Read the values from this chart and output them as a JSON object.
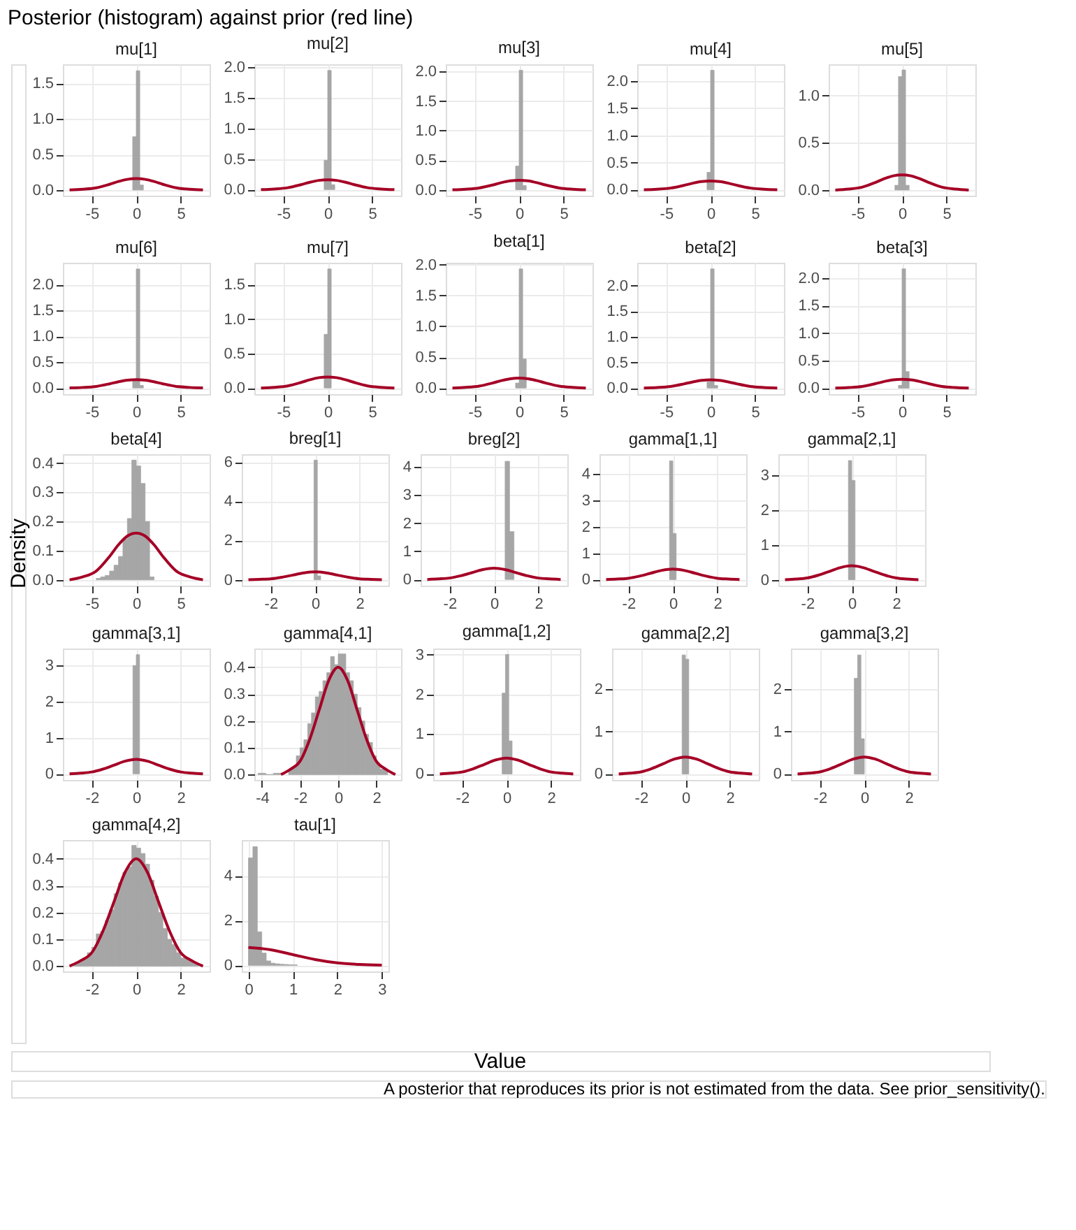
{
  "chart_data": [
    {
      "type": "histogram",
      "title": "mu[1]",
      "color": "#a6a6a6",
      "bins": [
        -0.4,
        0,
        0.4,
        0.8
      ],
      "values": [
        0.75,
        1.68,
        0.07
      ],
      "xlim": [
        -8.25,
        8.25
      ],
      "xticks": [
        -5,
        0,
        5
      ],
      "ylim": [
        -0.08,
        1.77
      ],
      "yticks": [
        {
          "value": 0,
          "label": "0.0"
        },
        {
          "value": 0.5,
          "label": "0.5"
        },
        {
          "value": 1,
          "label": "1.0"
        },
        {
          "value": 1.5,
          "label": "1.5"
        }
      ],
      "grid": true,
      "series": [
        {
          "type": "line",
          "color": "#a50026",
          "x": [
            -7.5,
            -6,
            -4.5,
            -3,
            -2,
            -1,
            0,
            1,
            2,
            3,
            4.5,
            6,
            7.5
          ],
          "values": [
            0.0,
            0.01,
            0.03,
            0.08,
            0.12,
            0.15,
            0.16,
            0.15,
            0.12,
            0.08,
            0.03,
            0.01,
            0.0
          ]
        }
      ]
    },
    {
      "type": "histogram",
      "title": "mu[2]",
      "color": "#a6a6a6",
      "bins": [
        -0.4,
        0,
        0.4,
        0.8
      ],
      "values": [
        0.48,
        1.95,
        0.08
      ],
      "xlim": [
        -8.25,
        8.25
      ],
      "xticks": [
        -5,
        0,
        5
      ],
      "ylim": [
        -0.1,
        2.05
      ],
      "yticks": [
        {
          "value": 0,
          "label": "0.0"
        },
        {
          "value": 0.5,
          "label": "0.5"
        },
        {
          "value": 1,
          "label": "1.0"
        },
        {
          "value": 1.5,
          "label": "1.5"
        },
        {
          "value": 2,
          "label": "2.0"
        }
      ],
      "grid": true,
      "series": [
        {
          "type": "line",
          "color": "#a50026",
          "x": [
            -7.5,
            -6,
            -4.5,
            -3,
            -2,
            -1,
            0,
            1,
            2,
            3,
            4.5,
            6,
            7.5
          ],
          "values": [
            0.0,
            0.01,
            0.03,
            0.08,
            0.12,
            0.15,
            0.16,
            0.15,
            0.12,
            0.08,
            0.03,
            0.01,
            0.0
          ]
        }
      ]
    },
    {
      "type": "histogram",
      "title": "mu[3]",
      "color": "#a6a6a6",
      "bins": [
        -0.4,
        0,
        0.4,
        0.8
      ],
      "values": [
        0.4,
        2.02,
        0.07
      ],
      "xlim": [
        -8.25,
        8.25
      ],
      "xticks": [
        -5,
        0,
        5
      ],
      "ylim": [
        -0.1,
        2.12
      ],
      "yticks": [
        {
          "value": 0,
          "label": "0.0"
        },
        {
          "value": 0.5,
          "label": "0.5"
        },
        {
          "value": 1,
          "label": "1.0"
        },
        {
          "value": 1.5,
          "label": "1.5"
        },
        {
          "value": 2,
          "label": "2.0"
        }
      ],
      "grid": true,
      "series": [
        {
          "type": "line",
          "color": "#a50026",
          "x": [
            -7.5,
            -6,
            -4.5,
            -3,
            -2,
            -1,
            0,
            1,
            2,
            3,
            4.5,
            6,
            7.5
          ],
          "values": [
            0.0,
            0.01,
            0.03,
            0.08,
            0.12,
            0.15,
            0.16,
            0.15,
            0.12,
            0.08,
            0.03,
            0.01,
            0.0
          ]
        }
      ]
    },
    {
      "type": "histogram",
      "title": "mu[4]",
      "color": "#a6a6a6",
      "bins": [
        -0.4,
        0,
        0.4
      ],
      "values": [
        0.32,
        2.2
      ],
      "xlim": [
        -8.25,
        8.25
      ],
      "xticks": [
        -5,
        0,
        5
      ],
      "ylim": [
        -0.11,
        2.31
      ],
      "yticks": [
        {
          "value": 0,
          "label": "0.0"
        },
        {
          "value": 0.5,
          "label": "0.5"
        },
        {
          "value": 1,
          "label": "1.0"
        },
        {
          "value": 1.5,
          "label": "1.5"
        },
        {
          "value": 2,
          "label": "2.0"
        }
      ],
      "grid": true,
      "series": [
        {
          "type": "line",
          "color": "#a50026",
          "x": [
            -7.5,
            -6,
            -4.5,
            -3,
            -2,
            -1,
            0,
            1,
            2,
            3,
            4.5,
            6,
            7.5
          ],
          "values": [
            0.0,
            0.01,
            0.03,
            0.08,
            0.12,
            0.15,
            0.16,
            0.15,
            0.12,
            0.08,
            0.03,
            0.01,
            0.0
          ]
        }
      ]
    },
    {
      "type": "histogram",
      "title": "mu[5]",
      "color": "#a6a6a6",
      "bins": [
        -0.8,
        -0.4,
        0,
        0.4,
        0.8
      ],
      "values": [
        0.05,
        1.2,
        1.27,
        0.05
      ],
      "xlim": [
        -8.25,
        8.25
      ],
      "xticks": [
        -5,
        0,
        5
      ],
      "ylim": [
        -0.06,
        1.33
      ],
      "yticks": [
        {
          "value": 0,
          "label": "0.0"
        },
        {
          "value": 0.5,
          "label": "0.5"
        },
        {
          "value": 1,
          "label": "1.0"
        }
      ],
      "grid": true,
      "series": [
        {
          "type": "line",
          "color": "#a50026",
          "x": [
            -7.5,
            -6,
            -4.5,
            -3,
            -2,
            -1,
            0,
            1,
            2,
            3,
            4.5,
            6,
            7.5
          ],
          "values": [
            0.0,
            0.01,
            0.03,
            0.08,
            0.12,
            0.15,
            0.16,
            0.15,
            0.12,
            0.08,
            0.03,
            0.01,
            0.0
          ]
        }
      ]
    },
    {
      "type": "histogram",
      "title": "mu[6]",
      "color": "#a6a6a6",
      "bins": [
        -0.4,
        0,
        0.4,
        0.8
      ],
      "values": [
        0.15,
        2.3,
        0.05
      ],
      "xlim": [
        -8.25,
        8.25
      ],
      "xticks": [
        -5,
        0,
        5
      ],
      "ylim": [
        -0.12,
        2.42
      ],
      "yticks": [
        {
          "value": 0,
          "label": "0.0"
        },
        {
          "value": 0.5,
          "label": "0.5"
        },
        {
          "value": 1,
          "label": "1.0"
        },
        {
          "value": 1.5,
          "label": "1.5"
        },
        {
          "value": 2,
          "label": "2.0"
        }
      ],
      "grid": true,
      "series": [
        {
          "type": "line",
          "color": "#a50026",
          "x": [
            -7.5,
            -6,
            -4.5,
            -3,
            -2,
            -1,
            0,
            1,
            2,
            3,
            4.5,
            6,
            7.5
          ],
          "values": [
            0.0,
            0.01,
            0.03,
            0.08,
            0.12,
            0.15,
            0.16,
            0.15,
            0.12,
            0.08,
            0.03,
            0.01,
            0.0
          ]
        }
      ]
    },
    {
      "type": "histogram",
      "title": "mu[7]",
      "color": "#a6a6a6",
      "bins": [
        -0.4,
        0,
        0.4
      ],
      "values": [
        0.78,
        1.73
      ],
      "xlim": [
        -8.25,
        8.25
      ],
      "xticks": [
        -5,
        0,
        5
      ],
      "ylim": [
        -0.09,
        1.82
      ],
      "yticks": [
        {
          "value": 0,
          "label": "0.0"
        },
        {
          "value": 0.5,
          "label": "0.5"
        },
        {
          "value": 1,
          "label": "1.0"
        },
        {
          "value": 1.5,
          "label": "1.5"
        }
      ],
      "grid": true,
      "series": [
        {
          "type": "line",
          "color": "#a50026",
          "x": [
            -7.5,
            -6,
            -4.5,
            -3,
            -2,
            -1,
            0,
            1,
            2,
            3,
            4.5,
            6,
            7.5
          ],
          "values": [
            0.0,
            0.01,
            0.03,
            0.08,
            0.12,
            0.15,
            0.16,
            0.15,
            0.12,
            0.08,
            0.03,
            0.01,
            0.0
          ]
        }
      ]
    },
    {
      "type": "histogram",
      "title": "beta[1]",
      "color": "#a6a6a6",
      "bins": [
        -0.4,
        0,
        0.4,
        0.8
      ],
      "values": [
        0.08,
        1.93,
        0.47
      ],
      "xlim": [
        -8.25,
        8.25
      ],
      "xticks": [
        -5,
        0,
        5
      ],
      "ylim": [
        -0.1,
        2.03
      ],
      "yticks": [
        {
          "value": 0,
          "label": "0.0"
        },
        {
          "value": 0.5,
          "label": "0.5"
        },
        {
          "value": 1,
          "label": "1.0"
        },
        {
          "value": 1.5,
          "label": "1.5"
        },
        {
          "value": 2,
          "label": "2.0"
        }
      ],
      "grid": true,
      "series": [
        {
          "type": "line",
          "color": "#a50026",
          "x": [
            -7.5,
            -6,
            -4.5,
            -3,
            -2,
            -1,
            0,
            1,
            2,
            3,
            4.5,
            6,
            7.5
          ],
          "values": [
            0.0,
            0.01,
            0.03,
            0.08,
            0.12,
            0.15,
            0.16,
            0.15,
            0.12,
            0.08,
            0.03,
            0.01,
            0.0
          ]
        }
      ]
    },
    {
      "type": "histogram",
      "title": "beta[2]",
      "color": "#a6a6a6",
      "bins": [
        -0.4,
        0,
        0.4,
        0.8
      ],
      "values": [
        0.12,
        2.33,
        0.05
      ],
      "xlim": [
        -8.25,
        8.25
      ],
      "xticks": [
        -5,
        0,
        5
      ],
      "ylim": [
        -0.12,
        2.45
      ],
      "yticks": [
        {
          "value": 0,
          "label": "0.0"
        },
        {
          "value": 0.5,
          "label": "0.5"
        },
        {
          "value": 1,
          "label": "1.0"
        },
        {
          "value": 1.5,
          "label": "1.5"
        },
        {
          "value": 2,
          "label": "2.0"
        }
      ],
      "grid": true,
      "series": [
        {
          "type": "line",
          "color": "#a50026",
          "x": [
            -7.5,
            -6,
            -4.5,
            -3,
            -2,
            -1,
            0,
            1,
            2,
            3,
            4.5,
            6,
            7.5
          ],
          "values": [
            0.0,
            0.01,
            0.03,
            0.08,
            0.12,
            0.15,
            0.16,
            0.15,
            0.12,
            0.08,
            0.03,
            0.01,
            0.0
          ]
        }
      ]
    },
    {
      "type": "histogram",
      "title": "beta[3]",
      "color": "#a6a6a6",
      "bins": [
        -0.4,
        0,
        0.4,
        0.8
      ],
      "values": [
        0.05,
        2.17,
        0.3
      ],
      "xlim": [
        -8.25,
        8.25
      ],
      "xticks": [
        -5,
        0,
        5
      ],
      "ylim": [
        -0.11,
        2.28
      ],
      "yticks": [
        {
          "value": 0,
          "label": "0.0"
        },
        {
          "value": 0.5,
          "label": "0.5"
        },
        {
          "value": 1,
          "label": "1.0"
        },
        {
          "value": 1.5,
          "label": "1.5"
        },
        {
          "value": 2,
          "label": "2.0"
        }
      ],
      "grid": true,
      "series": [
        {
          "type": "line",
          "color": "#a50026",
          "x": [
            -7.5,
            -6,
            -4.5,
            -3,
            -2,
            -1,
            0,
            1,
            2,
            3,
            4.5,
            6,
            7.5
          ],
          "values": [
            0.0,
            0.01,
            0.03,
            0.08,
            0.12,
            0.15,
            0.16,
            0.15,
            0.12,
            0.08,
            0.03,
            0.01,
            0.0
          ]
        }
      ]
    },
    {
      "type": "histogram",
      "title": "beta[4]",
      "color": "#a6a6a6",
      "bins": [
        -4.5,
        -4,
        -3.5,
        -3,
        -2.5,
        -2,
        -1.5,
        -1,
        -0.5,
        0,
        0.5,
        1,
        1.5,
        2
      ],
      "values": [
        0.005,
        0.01,
        0.015,
        0.03,
        0.05,
        0.08,
        0.14,
        0.21,
        0.41,
        0.39,
        0.33,
        0.2,
        0.01
      ],
      "xlim": [
        -8.25,
        8.25
      ],
      "xticks": [
        -5,
        0,
        5
      ],
      "ylim": [
        -0.02,
        0.43
      ],
      "yticks": [
        {
          "value": 0,
          "label": "0.0"
        },
        {
          "value": 0.1,
          "label": "0.1"
        },
        {
          "value": 0.2,
          "label": "0.2"
        },
        {
          "value": 0.3,
          "label": "0.3"
        },
        {
          "value": 0.4,
          "label": "0.4"
        }
      ],
      "grid": true,
      "series": [
        {
          "type": "line",
          "color": "#a50026",
          "x": [
            -7.5,
            -6,
            -4.5,
            -3,
            -2,
            -1,
            0,
            1,
            2,
            3,
            4.5,
            6,
            7.5
          ],
          "values": [
            0.0,
            0.01,
            0.03,
            0.08,
            0.12,
            0.15,
            0.16,
            0.15,
            0.12,
            0.08,
            0.03,
            0.01,
            0.0
          ]
        }
      ]
    },
    {
      "type": "histogram",
      "title": "breg[1]",
      "color": "#a6a6a6",
      "bins": [
        -0.05,
        0.1,
        0.25
      ],
      "values": [
        6.1,
        0.2
      ],
      "xlim": [
        -3.3,
        3.3
      ],
      "xticks": [
        -2,
        0,
        2
      ],
      "ylim": [
        -0.3,
        6.4
      ],
      "yticks": [
        0,
        2,
        4,
        6
      ],
      "grid": true,
      "series": [
        {
          "type": "line",
          "color": "#a50026",
          "x": [
            -3,
            -2.5,
            -2,
            -1.5,
            -1,
            -0.5,
            0,
            0.5,
            1,
            1.5,
            2,
            2.5,
            3
          ],
          "values": [
            0.0,
            0.02,
            0.05,
            0.13,
            0.24,
            0.35,
            0.4,
            0.35,
            0.24,
            0.13,
            0.05,
            0.02,
            0.0
          ]
        }
      ]
    },
    {
      "type": "histogram",
      "title": "breg[2]",
      "color": "#a6a6a6",
      "bins": [
        0.5,
        0.7,
        0.9
      ],
      "values": [
        4.2,
        1.7
      ],
      "xlim": [
        -3.3,
        3.3
      ],
      "xticks": [
        -2,
        0,
        2
      ],
      "ylim": [
        -0.22,
        4.45
      ],
      "yticks": [
        0,
        1,
        2,
        3,
        4
      ],
      "grid": true,
      "series": [
        {
          "type": "line",
          "color": "#a50026",
          "x": [
            -3,
            -2.5,
            -2,
            -1.5,
            -1,
            -0.5,
            0,
            0.5,
            1,
            1.5,
            2,
            2.5,
            3
          ],
          "values": [
            0.0,
            0.02,
            0.05,
            0.13,
            0.24,
            0.35,
            0.4,
            0.35,
            0.24,
            0.13,
            0.05,
            0.02,
            0.0
          ]
        }
      ]
    },
    {
      "type": "histogram",
      "title": "gamma[1,1]",
      "color": "#a6a6a6",
      "bins": [
        -0.15,
        0,
        0.15
      ],
      "values": [
        4.5,
        1.75
      ],
      "xlim": [
        -3.3,
        3.3
      ],
      "xticks": [
        -2,
        0,
        2
      ],
      "ylim": [
        -0.23,
        4.75
      ],
      "yticks": [
        0,
        1,
        2,
        3,
        4
      ],
      "grid": true,
      "series": [
        {
          "type": "line",
          "color": "#a50026",
          "x": [
            -3,
            -2.5,
            -2,
            -1.5,
            -1,
            -0.5,
            0,
            0.5,
            1,
            1.5,
            2,
            2.5,
            3
          ],
          "values": [
            0.0,
            0.02,
            0.05,
            0.13,
            0.24,
            0.35,
            0.4,
            0.35,
            0.24,
            0.13,
            0.05,
            0.02,
            0.0
          ]
        }
      ]
    },
    {
      "type": "histogram",
      "title": "gamma[2,1]",
      "color": "#a6a6a6",
      "bins": [
        -0.15,
        0,
        0.15
      ],
      "values": [
        3.42,
        2.85
      ],
      "xlim": [
        -3.3,
        3.3
      ],
      "xticks": [
        -2,
        0,
        2
      ],
      "ylim": [
        -0.17,
        3.6
      ],
      "yticks": [
        0,
        1,
        2,
        3
      ],
      "grid": true,
      "series": [
        {
          "type": "line",
          "color": "#a50026",
          "x": [
            -3,
            -2.5,
            -2,
            -1.5,
            -1,
            -0.5,
            0,
            0.5,
            1,
            1.5,
            2,
            2.5,
            3
          ],
          "values": [
            0.0,
            0.02,
            0.05,
            0.13,
            0.24,
            0.35,
            0.4,
            0.35,
            0.24,
            0.13,
            0.05,
            0.02,
            0.0
          ]
        }
      ]
    },
    {
      "type": "histogram",
      "title": "gamma[3,1]",
      "color": "#a6a6a6",
      "bins": [
        -0.15,
        0,
        0.15
      ],
      "values": [
        3.0,
        3.3
      ],
      "xlim": [
        -3.3,
        3.3
      ],
      "xticks": [
        -2,
        0,
        2
      ],
      "ylim": [
        -0.17,
        3.47
      ],
      "yticks": [
        0,
        1,
        2,
        3
      ],
      "grid": true,
      "series": [
        {
          "type": "line",
          "color": "#a50026",
          "x": [
            -3,
            -2.5,
            -2,
            -1.5,
            -1,
            -0.5,
            0,
            0.5,
            1,
            1.5,
            2,
            2.5,
            3
          ],
          "values": [
            0.0,
            0.02,
            0.05,
            0.13,
            0.24,
            0.35,
            0.4,
            0.35,
            0.24,
            0.13,
            0.05,
            0.02,
            0.0
          ]
        }
      ]
    },
    {
      "type": "histogram",
      "title": "gamma[4,1]",
      "color": "#a6a6a6",
      "bins": [
        -4.2,
        -4,
        -3.8,
        -3.6,
        -3.4,
        -3.2,
        -3,
        -2.8,
        -2.6,
        -2.4,
        -2.2,
        -2,
        -1.8,
        -1.6,
        -1.4,
        -1.2,
        -1,
        -0.8,
        -0.6,
        -0.4,
        -0.2,
        0,
        0.2,
        0.4,
        0.6,
        0.8,
        1,
        1.2,
        1.4,
        1.6,
        1.8,
        2,
        2.2,
        2.4,
        2.6
      ],
      "values": [
        0.005,
        0.005,
        0,
        0,
        0.005,
        0.005,
        null,
        null,
        0.02,
        0.03,
        0.07,
        0.1,
        0.13,
        0.19,
        0.23,
        0.29,
        0.31,
        0.35,
        0.38,
        0.44,
        0.41,
        0.45,
        0.45,
        0.38,
        0.35,
        0.3,
        0.25,
        0.2,
        0.15,
        0.12,
        0.07,
        0.04,
        0.02,
        0.02
      ],
      "xlim": [
        -4.4,
        3.3
      ],
      "xticks": [
        -4,
        -2,
        0,
        2
      ],
      "ylim": [
        -0.02,
        0.47
      ],
      "yticks": [
        {
          "value": 0,
          "label": "0.0"
        },
        {
          "value": 0.1,
          "label": "0.1"
        },
        {
          "value": 0.2,
          "label": "0.2"
        },
        {
          "value": 0.3,
          "label": "0.3"
        },
        {
          "value": 0.4,
          "label": "0.4"
        }
      ],
      "grid": true,
      "series": [
        {
          "type": "line",
          "color": "#a50026",
          "x": [
            -3,
            -2.5,
            -2,
            -1.5,
            -1,
            -0.5,
            0,
            0.5,
            1,
            1.5,
            2,
            2.5,
            3
          ],
          "values": [
            0.0,
            0.02,
            0.05,
            0.13,
            0.24,
            0.35,
            0.4,
            0.35,
            0.24,
            0.13,
            0.05,
            0.02,
            0.0
          ]
        }
      ]
    },
    {
      "type": "histogram",
      "title": "gamma[1,2]",
      "color": "#a6a6a6",
      "bins": [
        -0.2,
        -0.05,
        0.1,
        0.25
      ],
      "values": [
        2.03,
        3.0,
        0.83
      ],
      "xlim": [
        -3.3,
        3.3
      ],
      "xticks": [
        -2,
        0,
        2
      ],
      "ylim": [
        -0.15,
        3.15
      ],
      "yticks": [
        0,
        1,
        2,
        3
      ],
      "grid": true,
      "series": [
        {
          "type": "line",
          "color": "#a50026",
          "x": [
            -3,
            -2.5,
            -2,
            -1.5,
            -1,
            -0.5,
            0,
            0.5,
            1,
            1.5,
            2,
            2.5,
            3
          ],
          "values": [
            0.0,
            0.02,
            0.05,
            0.13,
            0.24,
            0.35,
            0.4,
            0.35,
            0.24,
            0.13,
            0.05,
            0.02,
            0.0
          ]
        }
      ]
    },
    {
      "type": "histogram",
      "title": "gamma[2,2]",
      "color": "#a6a6a6",
      "bins": [
        -0.15,
        0,
        0.15
      ],
      "values": [
        2.8,
        2.7
      ],
      "xlim": [
        -3.3,
        3.3
      ],
      "xticks": [
        -2,
        0,
        2
      ],
      "ylim": [
        -0.14,
        2.95
      ],
      "yticks": [
        0,
        1,
        2
      ],
      "grid": true,
      "series": [
        {
          "type": "line",
          "color": "#a50026",
          "x": [
            -3,
            -2.5,
            -2,
            -1.5,
            -1,
            -0.5,
            0,
            0.5,
            1,
            1.5,
            2,
            2.5,
            3
          ],
          "values": [
            0.0,
            0.02,
            0.05,
            0.13,
            0.24,
            0.35,
            0.4,
            0.35,
            0.24,
            0.13,
            0.05,
            0.02,
            0.0
          ]
        }
      ]
    },
    {
      "type": "histogram",
      "title": "gamma[3,2]",
      "color": "#a6a6a6",
      "bins": [
        -0.45,
        -0.3,
        -0.15,
        0
      ],
      "values": [
        2.25,
        2.8,
        0.83
      ],
      "xlim": [
        -3.3,
        3.3
      ],
      "xticks": [
        -2,
        0,
        2
      ],
      "ylim": [
        -0.14,
        2.95
      ],
      "yticks": [
        0,
        1,
        2
      ],
      "grid": true,
      "series": [
        {
          "type": "line",
          "color": "#a50026",
          "x": [
            -3,
            -2.5,
            -2,
            -1.5,
            -1,
            -0.5,
            0,
            0.5,
            1,
            1.5,
            2,
            2.5,
            3
          ],
          "values": [
            0.0,
            0.02,
            0.05,
            0.13,
            0.24,
            0.35,
            0.4,
            0.35,
            0.24,
            0.13,
            0.05,
            0.02,
            0.0
          ]
        }
      ]
    },
    {
      "type": "histogram",
      "title": "gamma[4,2]",
      "color": "#a6a6a6",
      "bins": [
        -2.8,
        -2.6,
        -2.4,
        -2.2,
        -2,
        -1.8,
        -1.6,
        -1.4,
        -1.2,
        -1,
        -0.8,
        -0.6,
        -0.4,
        -0.2,
        0,
        0.2,
        0.4,
        0.6,
        0.8,
        1,
        1.2,
        1.4,
        1.6,
        1.8,
        2,
        2.2,
        2.4,
        2.6,
        2.8
      ],
      "values": [
        0.01,
        0.02,
        0.03,
        0.05,
        0.07,
        0.12,
        0.13,
        0.17,
        0.21,
        0.27,
        0.31,
        0.35,
        0.37,
        0.45,
        0.44,
        0.42,
        0.38,
        0.32,
        0.26,
        0.2,
        0.14,
        0.1,
        0.08,
        0.05,
        0.03,
        0.03,
        0.02,
        0.01
      ],
      "xlim": [
        -3.3,
        3.3
      ],
      "xticks": [
        -2,
        0,
        2
      ],
      "ylim": [
        -0.02,
        0.47
      ],
      "yticks": [
        {
          "value": 0,
          "label": "0.0"
        },
        {
          "value": 0.1,
          "label": "0.1"
        },
        {
          "value": 0.2,
          "label": "0.2"
        },
        {
          "value": 0.3,
          "label": "0.3"
        },
        {
          "value": 0.4,
          "label": "0.4"
        }
      ],
      "grid": true,
      "series": [
        {
          "type": "line",
          "color": "#a50026",
          "x": [
            -3,
            -2.5,
            -2,
            -1.5,
            -1,
            -0.5,
            0,
            0.5,
            1,
            1.5,
            2,
            2.5,
            3
          ],
          "values": [
            0.0,
            0.02,
            0.05,
            0.13,
            0.24,
            0.35,
            0.4,
            0.35,
            0.24,
            0.13,
            0.05,
            0.02,
            0.0
          ]
        }
      ]
    },
    {
      "type": "histogram",
      "title": "tau[1]",
      "color": "#a6a6a6",
      "bins": [
        0,
        0.1,
        0.2,
        0.3,
        0.4,
        0.5,
        0.6,
        0.7,
        0.8,
        0.9,
        1.0,
        1.1
      ],
      "values": [
        4.8,
        5.3,
        1.5,
        0.55,
        0.2,
        0.1,
        0.07,
        0.05,
        0.04,
        0.03,
        0.02
      ],
      "xlim": [
        -0.15,
        3.15
      ],
      "xticks": [
        0,
        1,
        2,
        3
      ],
      "ylim": [
        -0.27,
        5.6
      ],
      "yticks": [
        0,
        2,
        4
      ],
      "grid": true,
      "series": [
        {
          "type": "line",
          "color": "#a50026",
          "x": [
            0,
            0.5,
            1,
            1.5,
            2,
            2.5,
            3
          ],
          "values": [
            0.8,
            0.7,
            0.48,
            0.26,
            0.11,
            0.04,
            0.01
          ]
        }
      ]
    },
    {
      "type": "other",
      "title": "Posterior (histogram) against prior (red line)",
      "xlabel": "Value",
      "ylabel": "Density",
      "annotations": [
        "A posterior that reproduces its prior is not estimated from the data. See prior_sensitivity()."
      ]
    }
  ]
}
